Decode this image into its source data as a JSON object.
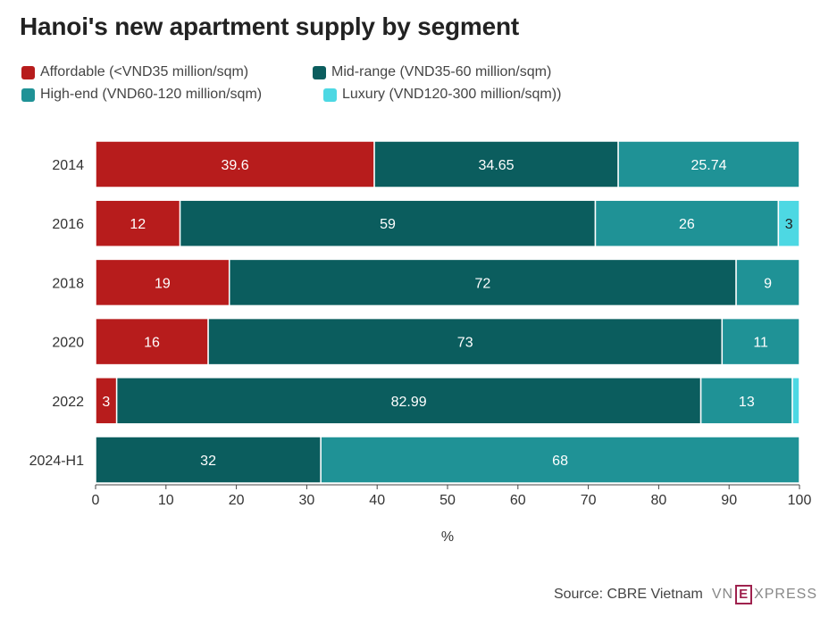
{
  "title": "Hanoi's new apartment supply by segment",
  "legend": [
    {
      "label": "Affordable (<VND35 million/sqm)",
      "color": "#b71c1c"
    },
    {
      "label": "Mid-range (VND35-60 million/sqm)",
      "color": "#0b5d5e"
    },
    {
      "label": "High-end (VND60-120 million/sqm)",
      "color": "#1f9296"
    },
    {
      "label": "Luxury (VND120-300 million/sqm))",
      "color": "#4dd8e3"
    }
  ],
  "chart_data": {
    "type": "bar",
    "orientation": "horizontal",
    "stacked": true,
    "categories": [
      "2014",
      "2016",
      "2018",
      "2020",
      "2022",
      "2024-H1"
    ],
    "series": [
      {
        "name": "Affordable (<VND35 million/sqm)",
        "color": "#b71c1c",
        "values": [
          39.6,
          12,
          19,
          16,
          3,
          0
        ]
      },
      {
        "name": "Mid-range (VND35-60 million/sqm)",
        "color": "#0b5d5e",
        "values": [
          34.65,
          59,
          72,
          73,
          82.99,
          32
        ]
      },
      {
        "name": "High-end (VND60-120 million/sqm)",
        "color": "#1f9296",
        "values": [
          25.74,
          26,
          9,
          11,
          13,
          68
        ]
      },
      {
        "name": "Luxury (VND120-300 million/sqm))",
        "color": "#4dd8e3",
        "values": [
          0,
          3,
          0,
          0,
          1,
          0
        ]
      }
    ],
    "data_labels": [
      [
        "39.6",
        "34.65",
        "25.74",
        ""
      ],
      [
        "12",
        "59",
        "26",
        "3"
      ],
      [
        "19",
        "72",
        "9",
        ""
      ],
      [
        "16",
        "73",
        "11",
        ""
      ],
      [
        "3",
        "82.99",
        "13",
        ""
      ],
      [
        "",
        "32",
        "68",
        ""
      ]
    ],
    "xticks": [
      "0",
      "10",
      "20",
      "30",
      "40",
      "50",
      "60",
      "70",
      "80",
      "90",
      "100"
    ],
    "xlim": [
      0,
      100
    ],
    "xlabel": "%",
    "ylabel": "",
    "grid": false,
    "legend_position": "top-left"
  },
  "footer": {
    "source": "Source: CBRE Vietnam",
    "brand_left": "VN",
    "brand_mid": "E",
    "brand_right": "XPRESS"
  }
}
